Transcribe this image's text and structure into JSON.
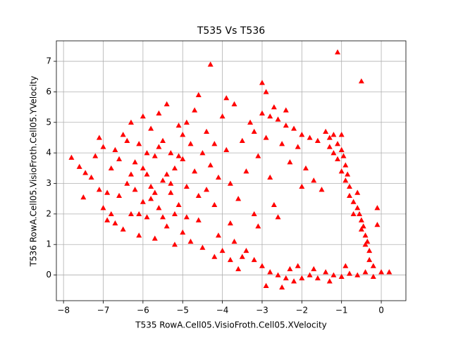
{
  "chart_data": {
    "type": "scatter",
    "title": "T535 Vs T536",
    "x_label": "T535 RowA.Cell05.VisioFroth.Cell05.XVelocity",
    "y_label": "T536 RowA.Cell05.VisioFroth.Cell05.YVelocity",
    "color": "#ff0000",
    "marker": "triangle",
    "grid": true,
    "xlim": [
      -8.18,
      0.62
    ],
    "ylim": [
      -0.84,
      7.67
    ],
    "xticks": [
      {
        "value": -8,
        "label": "−8"
      },
      {
        "value": -7,
        "label": "−7"
      },
      {
        "value": -6,
        "label": "−6"
      },
      {
        "value": -5,
        "label": "−5"
      },
      {
        "value": -4,
        "label": "−4"
      },
      {
        "value": -3,
        "label": "−3"
      },
      {
        "value": -2,
        "label": "−2"
      },
      {
        "value": -1,
        "label": "−1"
      },
      0
    ],
    "yticks": [
      0,
      1,
      2,
      3,
      4,
      5,
      6,
      7
    ],
    "x": [
      -7.8,
      -7.6,
      -7.45,
      -7.5,
      -4.3,
      -1.1,
      -0.5,
      0.2,
      -0.1,
      -0.1,
      -7.1,
      -7.0,
      -7.2,
      -7.3,
      -7.1,
      -7.0,
      -6.9,
      -6.8,
      -6.7,
      -6.6,
      -6.5,
      -6.5,
      -6.4,
      -6.3,
      -6.3,
      -6.2,
      -6.1,
      -6.1,
      -6.0,
      -6.0,
      -5.9,
      -5.9,
      -5.8,
      -5.8,
      -5.7,
      -5.7,
      -5.6,
      -5.6,
      -5.5,
      -5.5,
      -5.4,
      -5.4,
      -5.3,
      -5.3,
      -5.2,
      -5.2,
      -5.1,
      -5.1,
      -5.0,
      -5.0,
      -4.9,
      -4.9,
      -4.8,
      -4.8,
      -4.7,
      -4.7,
      -4.6,
      -4.6,
      -4.5,
      -4.5,
      -6.8,
      -6.6,
      -6.4,
      -6.2,
      -6.0,
      -5.8,
      -5.6,
      -5.4,
      -5.2,
      -5.0,
      -6.9,
      -6.7,
      -6.3,
      -6.1,
      -5.9,
      -5.7,
      -5.5,
      -5.3,
      -5.1,
      -4.9,
      -4.4,
      -4.3,
      -4.2,
      -4.1,
      -4.0,
      -4.0,
      -3.9,
      -3.8,
      -3.8,
      -3.7,
      -3.6,
      -3.5,
      -3.5,
      -3.4,
      -3.3,
      -3.2,
      -3.1,
      -3.0,
      -2.9,
      -3.1,
      -4.4,
      -4.2,
      -4.6,
      -3.9,
      -3.2,
      -4.1,
      -3.7,
      -2.8,
      -2.7,
      -2.6,
      -3.0,
      -2.8,
      -2.6,
      -2.4,
      -2.2,
      -2.0,
      -1.8,
      -1.6,
      -2.9,
      -2.5,
      -2.1,
      -1.9,
      -2.3,
      -2.0,
      -1.7,
      -1.5,
      -2.4,
      -2.7,
      -1.4,
      -1.3,
      -1.2,
      -1.1,
      -1.2,
      -1.0,
      -1.1,
      -0.9,
      -1.0,
      -0.9,
      -0.8,
      -0.8,
      -0.7,
      -0.6,
      -0.7,
      -0.5,
      -0.5,
      -0.4,
      -0.4,
      -0.3,
      -0.3,
      -0.2,
      -1.3,
      -1.0,
      -0.95,
      -0.85,
      -0.6,
      -0.55,
      -0.45,
      -0.35,
      -3.4,
      -3.2,
      -3.0,
      -2.8,
      -2.6,
      -2.4,
      -2.2,
      -2.0,
      -1.8,
      -1.6,
      -1.4,
      -1.2,
      -1.0,
      -0.8,
      -0.6,
      -0.4,
      -0.2,
      0.0,
      -2.9,
      -2.5,
      -2.1,
      -1.7,
      -1.3,
      -0.9,
      -3.6,
      -3.8,
      -4.2,
      -2.3
    ],
    "y": [
      3.85,
      3.55,
      3.35,
      2.55,
      6.9,
      7.3,
      6.35,
      0.1,
      1.65,
      2.2,
      4.5,
      4.2,
      3.9,
      3.2,
      2.8,
      2.2,
      1.8,
      3.5,
      4.1,
      2.6,
      1.5,
      4.6,
      3.0,
      2.0,
      5.0,
      3.7,
      4.3,
      1.3,
      2.4,
      5.2,
      3.3,
      1.9,
      4.8,
      2.9,
      1.2,
      3.9,
      5.3,
      2.2,
      4.4,
      3.1,
      1.6,
      5.6,
      2.7,
      4.0,
      1.0,
      3.5,
      4.9,
      2.3,
      1.4,
      3.8,
      5.0,
      2.9,
      1.1,
      4.3,
      3.4,
      5.4,
      1.8,
      2.6,
      4.0,
      0.9,
      2.0,
      3.8,
      4.4,
      2.8,
      3.5,
      2.5,
      4.2,
      3.3,
      2.0,
      4.6,
      2.7,
      1.7,
      3.3,
      2.0,
      4.0,
      2.7,
      1.9,
      3.0,
      3.9,
      1.9,
      4.7,
      3.6,
      2.3,
      1.3,
      5.2,
      0.8,
      4.1,
      3.0,
      1.7,
      5.6,
      2.5,
      4.4,
      0.6,
      3.4,
      5.0,
      2.0,
      3.9,
      6.3,
      6.0,
      1.6,
      2.8,
      4.3,
      5.9,
      5.8,
      4.7,
      3.2,
      1.1,
      3.2,
      2.3,
      1.9,
      5.3,
      5.2,
      5.1,
      4.9,
      4.8,
      4.6,
      4.5,
      4.4,
      4.5,
      4.3,
      4.2,
      3.5,
      3.7,
      2.9,
      3.1,
      2.8,
      5.4,
      5.5,
      4.7,
      4.5,
      4.6,
      4.3,
      4.0,
      4.1,
      3.8,
      3.6,
      3.4,
      3.1,
      2.9,
      2.6,
      2.4,
      2.2,
      2.0,
      1.8,
      1.5,
      1.3,
      1.0,
      0.8,
      0.5,
      0.3,
      4.2,
      4.6,
      3.9,
      3.3,
      2.7,
      2.0,
      1.6,
      1.1,
      0.8,
      0.5,
      0.3,
      0.1,
      0.0,
      -0.1,
      -0.2,
      -0.1,
      0.0,
      -0.1,
      0.1,
      0.0,
      -0.05,
      0.05,
      0.0,
      0.1,
      -0.05,
      0.1,
      -0.35,
      -0.4,
      0.3,
      0.2,
      -0.2,
      0.3,
      0.2,
      0.5,
      0.6,
      0.2
    ]
  }
}
